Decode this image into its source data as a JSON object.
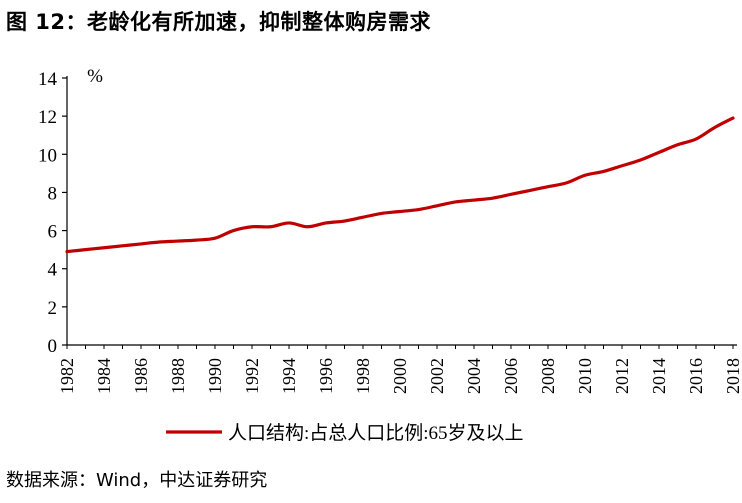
{
  "figure": {
    "title": "图 12：老龄化有所加速，抑制整体购房需求",
    "source": "数据来源：Wind，中达证券研究"
  },
  "colors": {
    "series": "#c00000",
    "axis": "#000000"
  },
  "chart_data": {
    "type": "line",
    "title": "",
    "xlabel": "",
    "ylabel": "%",
    "ylim": [
      0,
      14
    ],
    "yticks": [
      0,
      2,
      4,
      6,
      8,
      10,
      12,
      14
    ],
    "xlim": [
      1982,
      2018
    ],
    "xticks": [
      "1982",
      "1984",
      "1986",
      "1988",
      "1990",
      "1992",
      "1994",
      "1996",
      "1998",
      "2000",
      "2002",
      "2004",
      "2006",
      "2008",
      "2010",
      "2012",
      "2014",
      "2016",
      "2018"
    ],
    "grid": false,
    "legend_position": "bottom-center",
    "series": [
      {
        "name": "人口结构:占总人口比例:65岁及以上",
        "x": [
          1982,
          1983,
          1984,
          1985,
          1986,
          1987,
          1988,
          1989,
          1990,
          1991,
          1992,
          1993,
          1994,
          1995,
          1996,
          1997,
          1998,
          1999,
          2000,
          2001,
          2002,
          2003,
          2004,
          2005,
          2006,
          2007,
          2008,
          2009,
          2010,
          2011,
          2012,
          2013,
          2014,
          2015,
          2016,
          2017,
          2018
        ],
        "values": [
          4.9,
          5.0,
          5.1,
          5.2,
          5.3,
          5.4,
          5.45,
          5.5,
          5.6,
          6.0,
          6.2,
          6.2,
          6.4,
          6.2,
          6.4,
          6.5,
          6.7,
          6.9,
          7.0,
          7.1,
          7.3,
          7.5,
          7.6,
          7.7,
          7.9,
          8.1,
          8.3,
          8.5,
          8.9,
          9.1,
          9.4,
          9.7,
          10.1,
          10.5,
          10.8,
          11.4,
          11.9
        ]
      }
    ]
  }
}
